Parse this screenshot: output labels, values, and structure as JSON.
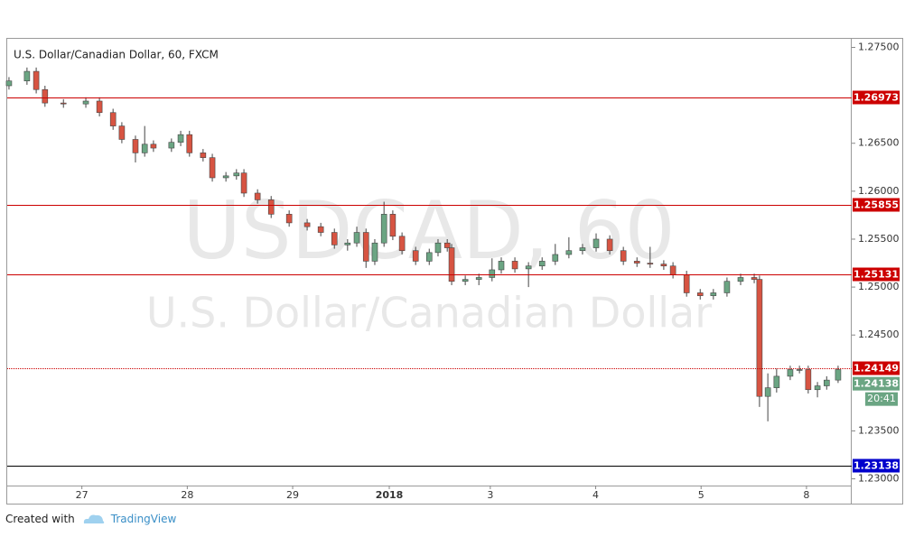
{
  "chart_data": {
    "type": "candlestick",
    "title": "U.S. Dollar/Canadian Dollar, 60, FXCM",
    "watermark": [
      "USDCAD, 60",
      "U.S. Dollar/Canadian Dollar"
    ],
    "up_color": "#6ba583",
    "down_color": "#d75442",
    "grid": false,
    "x": [
      7.4,
      11.5,
      13.6,
      15.6,
      19.8,
      24.9,
      28.0,
      31.1,
      33.1,
      36.2,
      38.3,
      40.3,
      44.4,
      46.5,
      48.5,
      51.6,
      53.7,
      56.8,
      59.2,
      60.9,
      64.0,
      67.1,
      71.2,
      75.3,
      78.4,
      81.5,
      84.5,
      86.6,
      88.7,
      90.7,
      92.8,
      94.8,
      96.9,
      100.0,
      103.1,
      105.1,
      107.2,
      108.2,
      111.3,
      114.4,
      117.4,
      119.5,
      122.6,
      125.7,
      128.8,
      131.8,
      134.9,
      138.0,
      141.1,
      144.2,
      147.3,
      150.4,
      153.4,
      156.5,
      158.6,
      161.7,
      164.8,
      167.8,
      170.9,
      174.0,
      177.1,
      178.3,
      180.2,
      182.2,
      185.3,
      187.4,
      189.4,
      191.5,
      193.6,
      196.2
    ],
    "open": [
      1.271,
      1.2715,
      1.2725,
      1.2706,
      1.2692,
      1.2691,
      1.2694,
      1.2682,
      1.2668,
      1.2654,
      1.264,
      1.2649,
      1.2645,
      1.2651,
      1.2659,
      1.264,
      1.2635,
      1.2614,
      1.2616,
      1.2619,
      1.2598,
      1.2591,
      1.2576,
      1.2567,
      1.2563,
      1.2557,
      1.2544,
      1.2546,
      1.2557,
      1.2527,
      1.2546,
      1.2576,
      1.2553,
      1.2538,
      1.2527,
      1.2536,
      1.2546,
      1.2541,
      1.2506,
      1.2508,
      1.251,
      1.2518,
      1.2527,
      1.2519,
      1.2522,
      1.2527,
      1.2534,
      1.2538,
      1.2541,
      1.255,
      1.2538,
      1.2527,
      1.2525,
      1.2524,
      1.2522,
      1.2513,
      1.2494,
      1.2491,
      1.2494,
      1.2506,
      1.251,
      1.2508,
      1.2386,
      1.2395,
      1.2407,
      1.2414,
      1.2414,
      1.2393,
      1.2397,
      1.2403
    ],
    "high": [
      1.2719,
      1.2729,
      1.2729,
      1.271,
      1.2696,
      1.2698,
      1.2698,
      1.2686,
      1.2672,
      1.2658,
      1.2668,
      1.2653,
      1.2655,
      1.2663,
      1.2663,
      1.2644,
      1.2639,
      1.262,
      1.2623,
      1.2623,
      1.2602,
      1.2595,
      1.258,
      1.2571,
      1.2567,
      1.2561,
      1.255,
      1.2563,
      1.2561,
      1.255,
      1.2589,
      1.258,
      1.2557,
      1.2542,
      1.254,
      1.255,
      1.255,
      1.2545,
      1.2512,
      1.2514,
      1.253,
      1.2531,
      1.2531,
      1.2526,
      1.2531,
      1.2545,
      1.2552,
      1.2545,
      1.2556,
      1.2554,
      1.2542,
      1.2531,
      1.2542,
      1.2528,
      1.2526,
      1.2517,
      1.2498,
      1.2498,
      1.251,
      1.2514,
      1.2514,
      1.2512,
      1.241,
      1.2415,
      1.2418,
      1.2418,
      1.2418,
      1.2401,
      1.2407,
      1.2418
    ],
    "low": [
      1.2706,
      1.2711,
      1.2702,
      1.2688,
      1.2687,
      1.2687,
      1.2678,
      1.2664,
      1.265,
      1.263,
      1.2636,
      1.2641,
      1.2641,
      1.2647,
      1.2636,
      1.2631,
      1.261,
      1.261,
      1.2612,
      1.2594,
      1.2587,
      1.2572,
      1.2563,
      1.2559,
      1.2553,
      1.254,
      1.2538,
      1.2542,
      1.252,
      1.2523,
      1.2542,
      1.2549,
      1.2534,
      1.2523,
      1.2523,
      1.2532,
      1.2537,
      1.2502,
      1.2502,
      1.2502,
      1.2506,
      1.2514,
      1.2515,
      1.25,
      1.2518,
      1.2523,
      1.253,
      1.2534,
      1.2537,
      1.2534,
      1.2523,
      1.2521,
      1.252,
      1.2518,
      1.2509,
      1.249,
      1.2487,
      1.2487,
      1.249,
      1.2502,
      1.2504,
      1.2375,
      1.236,
      1.239,
      1.2403,
      1.241,
      1.2389,
      1.2385,
      1.2393,
      1.24
    ],
    "close": [
      1.2715,
      1.2725,
      1.2706,
      1.2692,
      1.2691,
      1.2694,
      1.2682,
      1.2668,
      1.2654,
      1.264,
      1.2649,
      1.2645,
      1.2651,
      1.2659,
      1.264,
      1.2635,
      1.2614,
      1.2616,
      1.2619,
      1.2598,
      1.2591,
      1.2576,
      1.2567,
      1.2563,
      1.2557,
      1.2544,
      1.2546,
      1.2557,
      1.2527,
      1.2546,
      1.2576,
      1.2553,
      1.2538,
      1.2527,
      1.2536,
      1.2546,
      1.2541,
      1.2506,
      1.2508,
      1.251,
      1.2518,
      1.2527,
      1.2519,
      1.2522,
      1.2527,
      1.2534,
      1.2538,
      1.2541,
      1.255,
      1.2538,
      1.2527,
      1.2525,
      1.2524,
      1.2522,
      1.2513,
      1.2494,
      1.2491,
      1.2494,
      1.2506,
      1.251,
      1.2508,
      1.2386,
      1.2395,
      1.2407,
      1.2414,
      1.2414,
      1.2393,
      1.2397,
      1.2403,
      1.2414
    ],
    "xlim": [
      7,
      199.3
    ],
    "xticks": [
      {
        "value": 24,
        "label": "27"
      },
      {
        "value": 48,
        "label": "28"
      },
      {
        "value": 72,
        "label": "29"
      },
      {
        "value": 94,
        "label": "2018"
      },
      {
        "value": 117,
        "label": "3"
      },
      {
        "value": 141,
        "label": "4"
      },
      {
        "value": 165,
        "label": "5"
      },
      {
        "value": 189,
        "label": "8"
      }
    ],
    "ylim": [
      1.2293,
      1.2758
    ],
    "yticks": [
      {
        "value": 1.275,
        "label": "1.27500"
      },
      {
        "value": 1.265,
        "label": "1.26500"
      },
      {
        "value": 1.26,
        "label": "1.26000"
      },
      {
        "value": 1.255,
        "label": "1.25500"
      },
      {
        "value": 1.25,
        "label": "1.25000"
      },
      {
        "value": 1.245,
        "label": "1.24500"
      },
      {
        "value": 1.235,
        "label": "1.23500"
      },
      {
        "value": 1.23,
        "label": "1.23000"
      }
    ],
    "levels": [
      {
        "value": 1.26973,
        "color": "#cc0000",
        "style": "solid"
      },
      {
        "value": 1.25855,
        "color": "#cc0000",
        "style": "solid"
      },
      {
        "value": 1.25131,
        "color": "#cc0000",
        "style": "solid"
      },
      {
        "value": 1.24149,
        "color": "#cc0000",
        "style": "dotted"
      },
      {
        "value": 1.23138,
        "color": "#0000cc",
        "style": "solid"
      }
    ],
    "last_price": {
      "value": 1.24138,
      "time": "20:41",
      "color": "#6ba583"
    }
  },
  "footer": {
    "created_with": "Created with",
    "brand": "TradingView"
  }
}
